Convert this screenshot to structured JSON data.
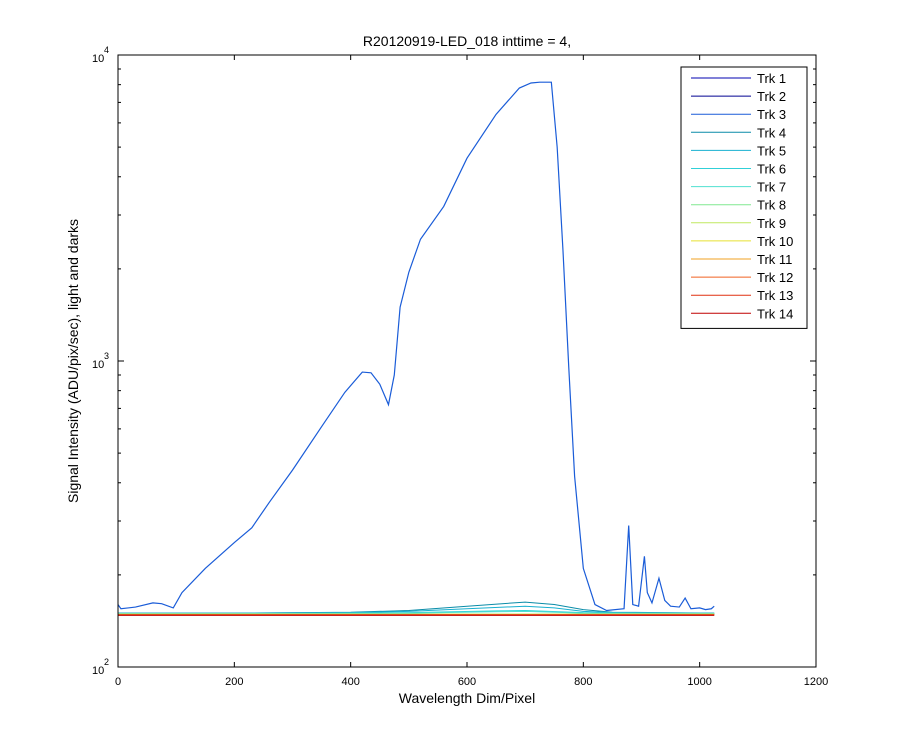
{
  "chart_data": {
    "type": "line",
    "title": "R20120919-LED_018 inttime = 4,",
    "xlabel": "Wavelength Dim/Pixel",
    "ylabel": "Signal Intensity (ADU/pix/sec), light and darks",
    "xlim": [
      0,
      1200
    ],
    "ylim": [
      100,
      10000
    ],
    "yscale": "log",
    "grid": false,
    "legend_position": "top-right",
    "x_ticks": [
      0,
      200,
      400,
      600,
      800,
      1000,
      1200
    ],
    "x_tick_labels": [
      "0",
      "200",
      "400",
      "600",
      "800",
      "1000",
      "1200"
    ],
    "y_ticks": [
      {
        "value": 100,
        "base": "10",
        "exponent": "2"
      },
      {
        "value": 1000,
        "base": "10",
        "exponent": "3"
      },
      {
        "value": 10000,
        "base": "10",
        "exponent": "4"
      }
    ],
    "series": [
      {
        "name": "Trk 1",
        "color": "#0000b0",
        "x": [
          0,
          1025
        ],
        "y": [
          148,
          148
        ]
      },
      {
        "name": "Trk 2",
        "color": "#000090",
        "x": [
          0,
          1025
        ],
        "y": [
          149,
          149
        ]
      },
      {
        "name": "Trk 3",
        "color": "#1a5cd8",
        "x": [
          0,
          5,
          30,
          60,
          75,
          95,
          110,
          150,
          200,
          230,
          260,
          300,
          350,
          390,
          420,
          435,
          450,
          465,
          475,
          485,
          500,
          520,
          560,
          600,
          650,
          690,
          710,
          725,
          745,
          755,
          765,
          775,
          785,
          800,
          820,
          840,
          870,
          878,
          885,
          895,
          905,
          910,
          918,
          930,
          940,
          950,
          965,
          975,
          985,
          1000,
          1010,
          1020,
          1025
        ],
        "y": [
          160,
          155,
          157,
          162,
          161,
          156,
          175,
          210,
          255,
          285,
          345,
          440,
          610,
          790,
          920,
          915,
          840,
          720,
          900,
          1500,
          1950,
          2500,
          3200,
          4600,
          6400,
          7800,
          8100,
          8150,
          8150,
          5000,
          2300,
          950,
          420,
          210,
          160,
          153,
          155,
          290,
          160,
          158,
          230,
          175,
          162,
          195,
          165,
          158,
          157,
          168,
          155,
          156,
          154,
          155,
          158
        ]
      },
      {
        "name": "Trk 4",
        "color": "#0a8ca8",
        "x": [
          0,
          200,
          400,
          500,
          600,
          700,
          750,
          800,
          850,
          1025
        ],
        "y": [
          150,
          150,
          151,
          153,
          158,
          163,
          160,
          154,
          151,
          150
        ]
      },
      {
        "name": "Trk 5",
        "color": "#18b0d0",
        "x": [
          0,
          200,
          400,
          500,
          600,
          700,
          750,
          800,
          850,
          1025
        ],
        "y": [
          150,
          150,
          150.5,
          152,
          155,
          158,
          156,
          152,
          150.5,
          150
        ]
      },
      {
        "name": "Trk 6",
        "color": "#30d0d8",
        "x": [
          0,
          300,
          500,
          650,
          700,
          800,
          1025
        ],
        "y": [
          149.5,
          149.5,
          150.5,
          152.5,
          153,
          150.5,
          149.5
        ]
      },
      {
        "name": "Trk 7",
        "color": "#50e0d0",
        "x": [
          0,
          300,
          500,
          650,
          700,
          800,
          1025
        ],
        "y": [
          149.5,
          149.5,
          150,
          151.5,
          152,
          150,
          149.5
        ]
      },
      {
        "name": "Trk 8",
        "color": "#80e890",
        "x": [
          0,
          1025
        ],
        "y": [
          149,
          149
        ]
      },
      {
        "name": "Trk 9",
        "color": "#c0e860",
        "x": [
          0,
          1025
        ],
        "y": [
          149,
          149
        ]
      },
      {
        "name": "Trk 10",
        "color": "#e8e030",
        "x": [
          0,
          1025
        ],
        "y": [
          148.5,
          148.5
        ]
      },
      {
        "name": "Trk 11",
        "color": "#f0a020",
        "x": [
          0,
          1025
        ],
        "y": [
          148.5,
          148.5
        ]
      },
      {
        "name": "Trk 12",
        "color": "#f06020",
        "x": [
          0,
          1025
        ],
        "y": [
          148,
          148
        ]
      },
      {
        "name": "Trk 13",
        "color": "#e03010",
        "x": [
          0,
          1025
        ],
        "y": [
          148,
          148
        ]
      },
      {
        "name": "Trk 14",
        "color": "#c00000",
        "x": [
          0,
          1025
        ],
        "y": [
          147.5,
          147.5
        ]
      }
    ]
  }
}
